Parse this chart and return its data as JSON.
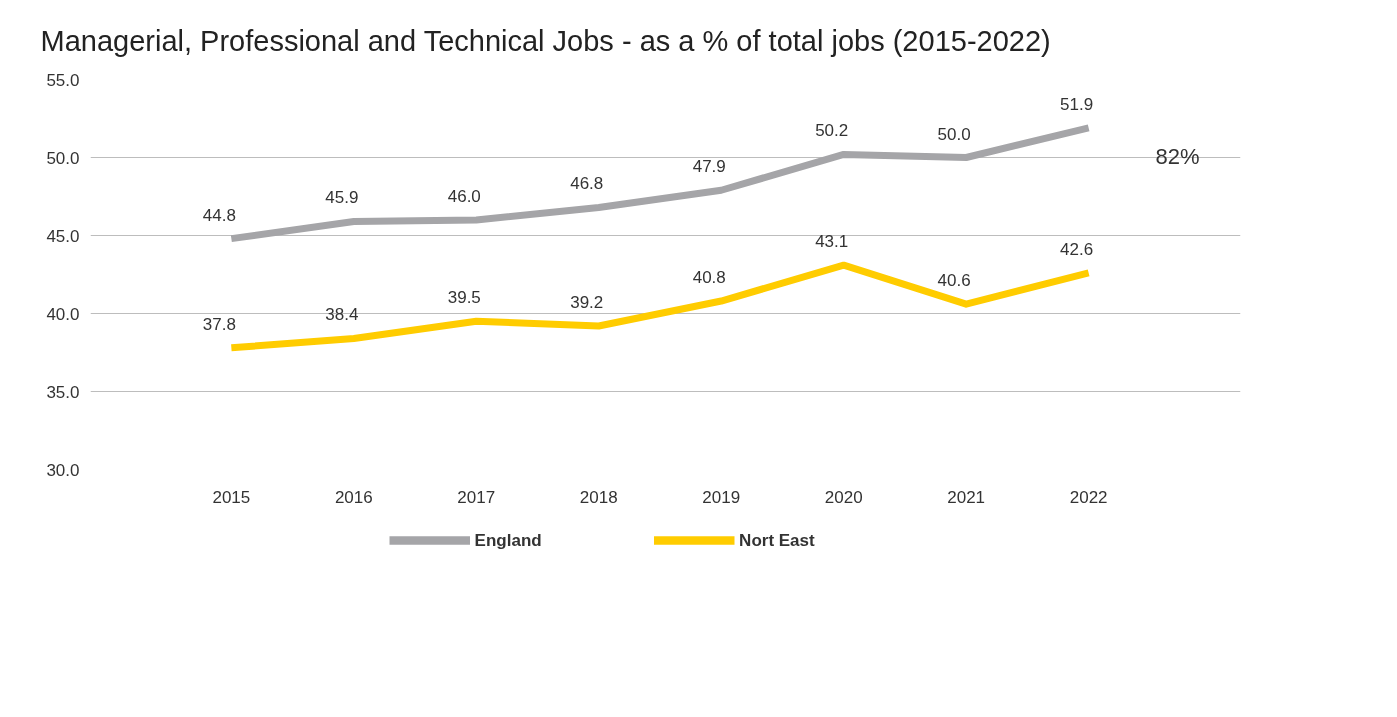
{
  "chart_data": {
    "type": "line",
    "title": "Managerial, Professional and Technical Jobs - as a % of total jobs (2015-2022)",
    "categories": [
      "2015",
      "2016",
      "2017",
      "2018",
      "2019",
      "2020",
      "2021",
      "2022"
    ],
    "series": [
      {
        "name": "England",
        "color": "#a5a5a8",
        "values": [
          44.8,
          45.9,
          46.0,
          46.8,
          47.9,
          50.2,
          50.0,
          51.9
        ],
        "value_labels": [
          "44.8",
          "45.9",
          "46.0",
          "46.8",
          "47.9",
          "50.2",
          "50.0",
          "51.9"
        ]
      },
      {
        "name": "Nort East",
        "color": "#ffcc00",
        "values": [
          37.8,
          38.4,
          39.5,
          39.2,
          40.8,
          43.1,
          40.6,
          42.6
        ],
        "value_labels": [
          "37.8",
          "38.4",
          "39.5",
          "39.2",
          "40.8",
          "43.1",
          "40.6",
          "42.6"
        ]
      }
    ],
    "ylim": [
      30,
      55
    ],
    "yticks": [
      {
        "value": 30,
        "label": "30.0"
      },
      {
        "value": 35,
        "label": "35.0"
      },
      {
        "value": 40,
        "label": "40.0"
      },
      {
        "value": 45,
        "label": "45.0"
      },
      {
        "value": 50,
        "label": "50.0"
      },
      {
        "value": 55,
        "label": "55.0"
      }
    ],
    "grid": "y",
    "legend": "bottom",
    "data_labels": true,
    "marker": "none",
    "line_style": "solid",
    "annotations": [
      "82%"
    ]
  }
}
